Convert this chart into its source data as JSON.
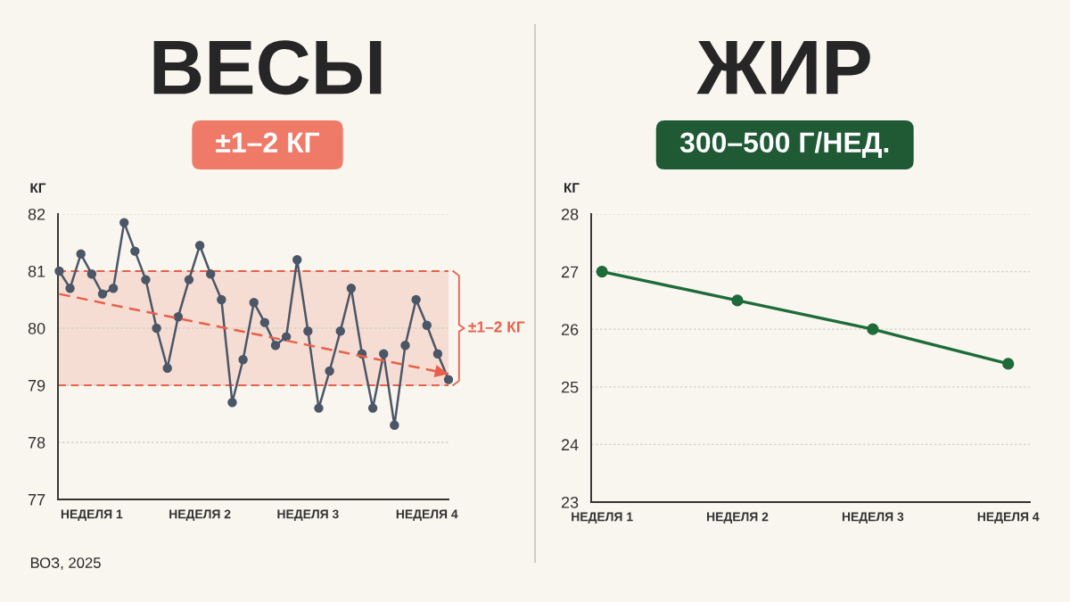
{
  "chart_data": [
    {
      "type": "line",
      "title": "ВЕСЫ",
      "subtitle": "±1–2 КГ",
      "ylabel": "КГ",
      "categories": [
        null,
        null,
        null,
        "НЕДЕЛЯ 1",
        null,
        null,
        null,
        null,
        null,
        null,
        null,
        null,
        null,
        "НЕДЕЛЯ 2",
        null,
        null,
        null,
        null,
        null,
        null,
        null,
        null,
        null,
        "НЕДЕЛЯ 3",
        null,
        null,
        null,
        null,
        null,
        null,
        null,
        null,
        null,
        null,
        "НЕДЕЛЯ 4",
        null,
        null
      ],
      "ylim": [
        77,
        82
      ],
      "yticks": [
        77,
        78,
        79,
        80,
        81,
        82
      ],
      "grid": "y",
      "marker": "circle",
      "series": [
        {
          "color": "#4b5667",
          "values": [
            81.0,
            80.7,
            81.3,
            80.95,
            80.6,
            80.7,
            81.85,
            81.35,
            80.85,
            80.0,
            79.3,
            80.2,
            80.85,
            81.45,
            80.95,
            80.5,
            78.7,
            79.45,
            80.45,
            80.1,
            79.7,
            79.85,
            81.2,
            79.95,
            78.6,
            79.25,
            79.95,
            80.7,
            79.55,
            78.6,
            79.55,
            78.3,
            79.7,
            80.5,
            80.05,
            79.55,
            79.1
          ]
        },
        {
          "type": "line",
          "color": "#e8604c",
          "line_style": "dashed",
          "marker": "none",
          "values": [
            80.6,
            null,
            null,
            null,
            null,
            null,
            null,
            null,
            null,
            null,
            null,
            null,
            null,
            null,
            null,
            null,
            null,
            null,
            null,
            null,
            null,
            null,
            null,
            null,
            null,
            null,
            null,
            null,
            null,
            null,
            null,
            null,
            null,
            null,
            null,
            null,
            79.2
          ]
        }
      ],
      "bands": [
        {
          "axis": "y",
          "from": 79,
          "to": 81,
          "label": "±1–2 КГ",
          "color": "#e8604c"
        }
      ],
      "annotations": [
        "ВОЗ, 2025"
      ]
    },
    {
      "type": "line",
      "title": "ЖИР",
      "subtitle": "300–500 Г/НЕД.",
      "ylabel": "КГ",
      "categories": [
        "НЕДЕЛЯ 1",
        "НЕДЕЛЯ 2",
        "НЕДЕЛЯ 3",
        "НЕДЕЛЯ 4"
      ],
      "ylim": [
        23,
        28
      ],
      "yticks": [
        23,
        24,
        25,
        26,
        27,
        28
      ],
      "grid": "y",
      "marker": "circle",
      "series": [
        {
          "color": "#1e6b3a",
          "values": [
            27.0,
            26.5,
            26.0,
            25.4
          ]
        }
      ]
    }
  ]
}
